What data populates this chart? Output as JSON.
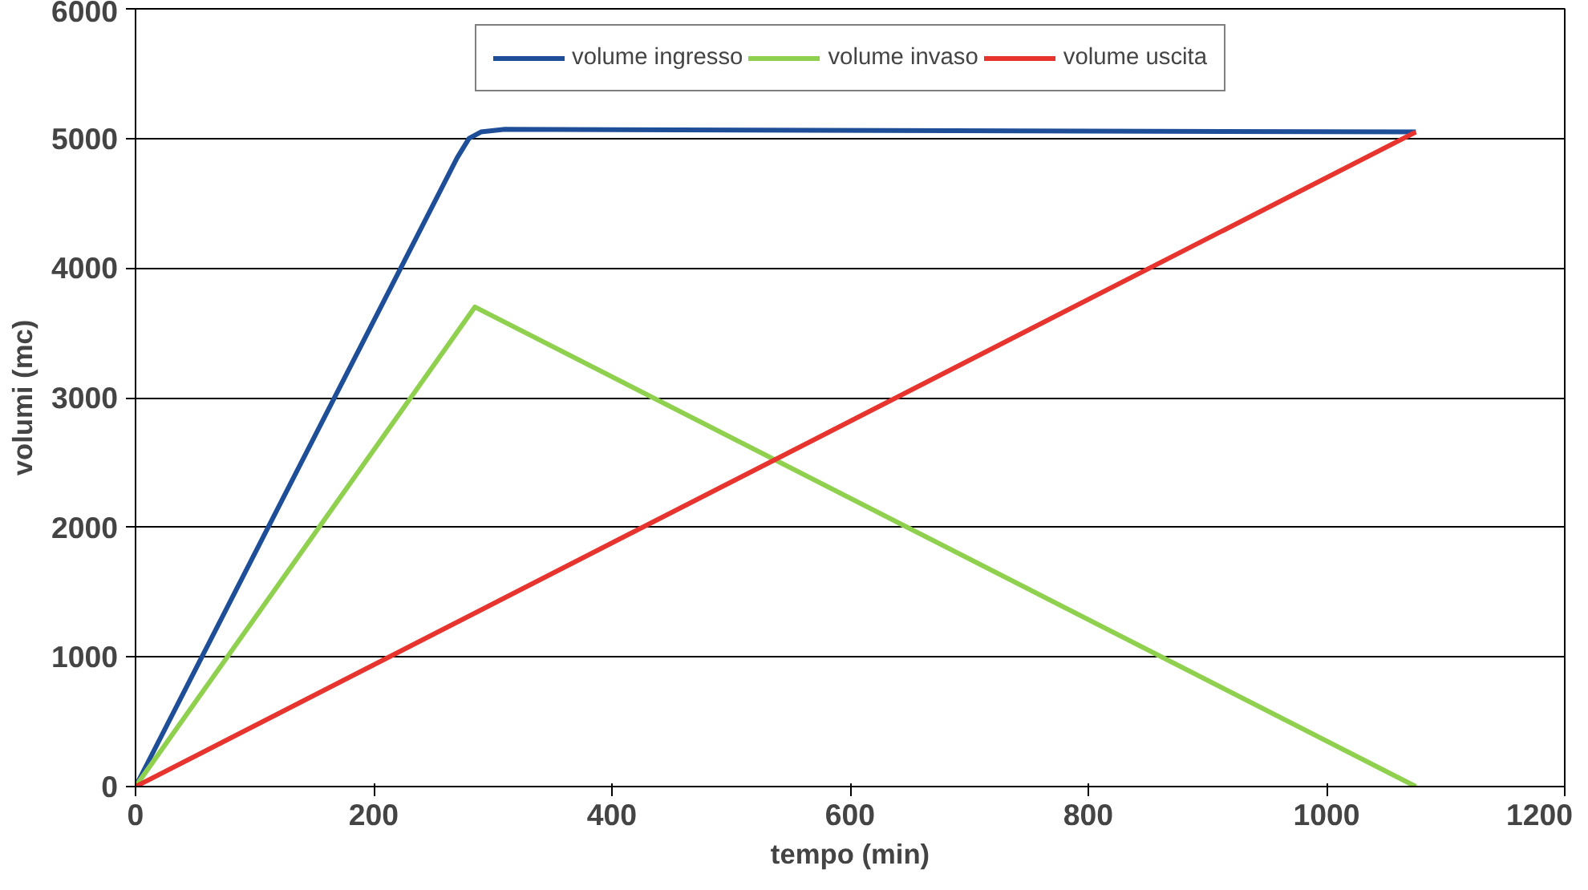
{
  "chart_data": {
    "type": "line",
    "xlabel": "tempo (min)",
    "ylabel": "volumi (mc)",
    "xlim": [
      0,
      1200
    ],
    "xticks": [
      0,
      200,
      400,
      600,
      800,
      1000,
      1200
    ],
    "ylim": [
      0,
      6000
    ],
    "yticks": [
      0,
      1000,
      2000,
      3000,
      4000,
      5000,
      6000
    ],
    "grid": "y",
    "legend": "top",
    "marker": "none",
    "line_style": "solid",
    "series": [
      {
        "name": "volume ingresso",
        "color": "#1f4e99",
        "x": [
          0,
          270,
          280,
          290,
          310,
          1075
        ],
        "values": [
          0,
          4850,
          5000,
          5050,
          5070,
          5050
        ]
      },
      {
        "name": "volume invaso",
        "color": "#8fd14f",
        "x": [
          0,
          285,
          1075
        ],
        "values": [
          0,
          3700,
          0
        ]
      },
      {
        "name": "volume uscita",
        "color": "#e8342e",
        "x": [
          0,
          1075
        ],
        "values": [
          0,
          5050
        ]
      }
    ]
  }
}
